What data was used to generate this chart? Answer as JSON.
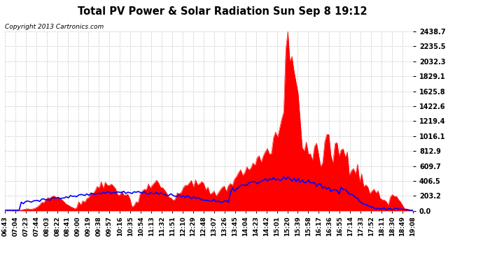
{
  "title": "Total PV Power & Solar Radiation Sun Sep 8 19:12",
  "copyright": "Copyright 2013 Cartronics.com",
  "y_ticks": [
    0.0,
    203.2,
    406.5,
    609.7,
    812.9,
    1016.1,
    1219.4,
    1422.6,
    1625.8,
    1829.1,
    2032.3,
    2235.5,
    2438.7
  ],
  "y_max": 2438.7,
  "background_color": "#ffffff",
  "plot_bg_color": "#ffffff",
  "grid_color": "#aaaaaa",
  "red_color": "#ff0000",
  "blue_color": "#0000ff",
  "legend_radiation_bg": "#0000ff",
  "legend_pv_bg": "#ff0000",
  "x_tick_labels": [
    "06:43",
    "07:04",
    "07:23",
    "07:44",
    "08:03",
    "08:22",
    "08:41",
    "09:00",
    "09:19",
    "09:38",
    "09:57",
    "10:16",
    "10:35",
    "10:54",
    "11:13",
    "11:32",
    "11:51",
    "12:10",
    "12:29",
    "12:48",
    "13:07",
    "13:26",
    "13:45",
    "14:04",
    "14:23",
    "14:42",
    "15:01",
    "15:20",
    "15:39",
    "15:58",
    "16:17",
    "16:36",
    "16:55",
    "17:14",
    "17:33",
    "17:52",
    "18:11",
    "18:30",
    "18:49",
    "19:08"
  ]
}
